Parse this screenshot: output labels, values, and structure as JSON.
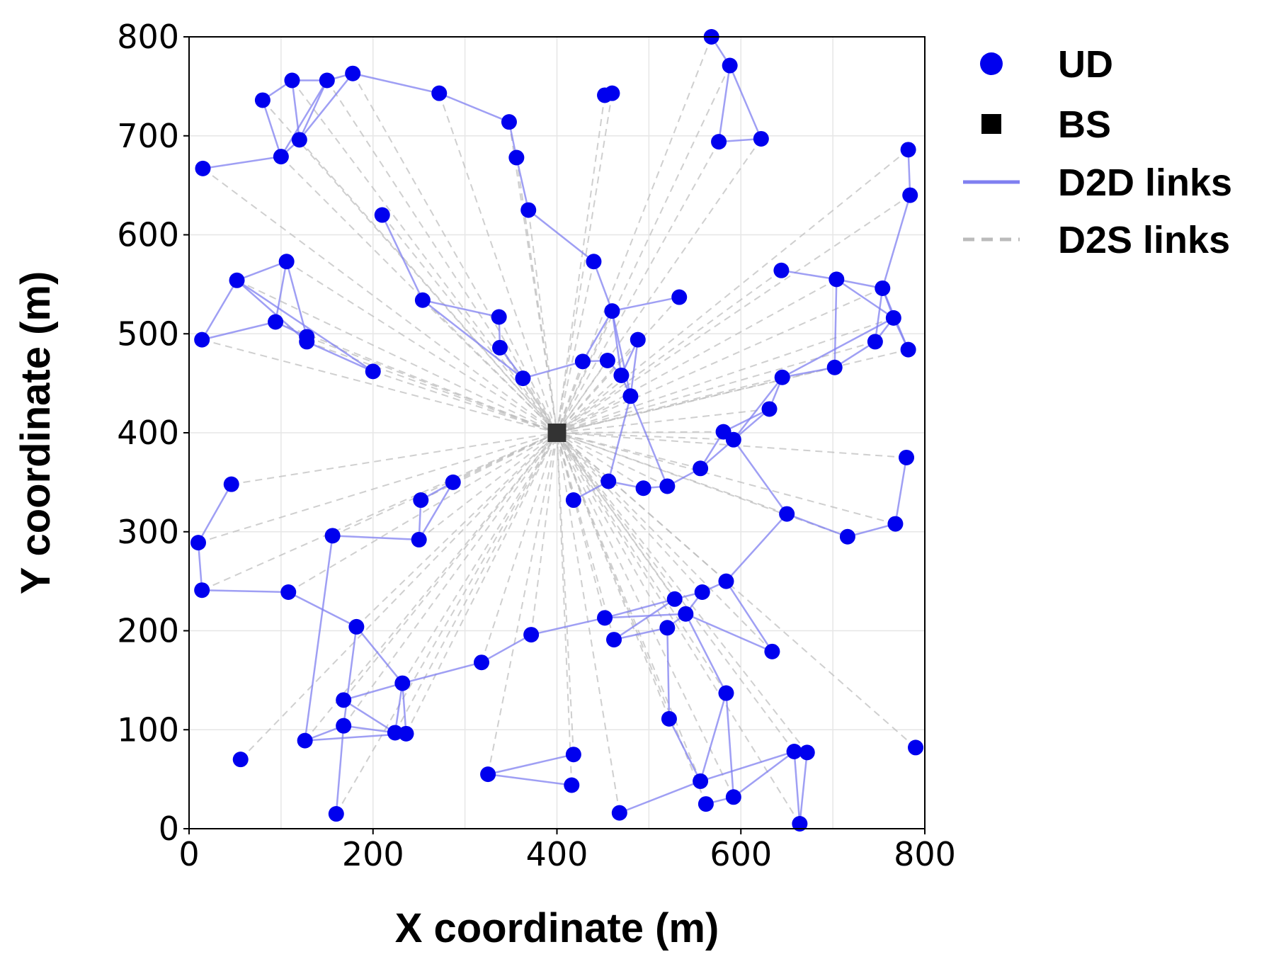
{
  "chart_data": {
    "type": "scatter",
    "title": "",
    "xlabel": "X coordinate (m)",
    "ylabel": "Y coordinate (m)",
    "xlim": [
      0,
      800
    ],
    "ylim": [
      0,
      800
    ],
    "xticks": [
      0,
      200,
      400,
      600,
      800
    ],
    "yticks": [
      0,
      100,
      200,
      300,
      400,
      500,
      600,
      700,
      800
    ],
    "grid": true,
    "legend_position": "outside-right",
    "colors": {
      "ud": "#0000ee",
      "bs": "#000000",
      "d2d": "#7f7ff0",
      "d2s": "#bbbbbb"
    },
    "legend": [
      {
        "key": "ud",
        "label": "UD",
        "marker": "circle"
      },
      {
        "key": "bs",
        "label": "BS",
        "marker": "square"
      },
      {
        "key": "d2d",
        "label": "D2D links",
        "marker": "solid-line"
      },
      {
        "key": "d2s",
        "label": "D2S links",
        "marker": "dashed-line"
      }
    ],
    "bs": {
      "x": 400,
      "y": 400
    },
    "ud_points": [
      [
        15,
        667
      ],
      [
        80,
        736
      ],
      [
        100,
        679
      ],
      [
        112,
        756
      ],
      [
        120,
        696
      ],
      [
        150,
        756
      ],
      [
        178,
        763
      ],
      [
        272,
        743
      ],
      [
        348,
        714
      ],
      [
        356,
        678
      ],
      [
        369,
        625
      ],
      [
        452,
        741
      ],
      [
        460,
        743
      ],
      [
        568,
        800
      ],
      [
        576,
        694
      ],
      [
        588,
        771
      ],
      [
        622,
        697
      ],
      [
        782,
        686
      ],
      [
        784,
        640
      ],
      [
        210,
        620
      ],
      [
        440,
        573
      ],
      [
        52,
        554
      ],
      [
        106,
        573
      ],
      [
        14,
        494
      ],
      [
        94,
        512
      ],
      [
        128,
        497
      ],
      [
        128,
        492
      ],
      [
        200,
        462
      ],
      [
        254,
        534
      ],
      [
        337,
        517
      ],
      [
        338,
        486
      ],
      [
        363,
        455
      ],
      [
        428,
        472
      ],
      [
        455,
        473
      ],
      [
        460,
        523
      ],
      [
        470,
        458
      ],
      [
        480,
        437
      ],
      [
        488,
        494
      ],
      [
        533,
        537
      ],
      [
        644,
        564
      ],
      [
        704,
        555
      ],
      [
        754,
        546
      ],
      [
        766,
        516
      ],
      [
        746,
        492
      ],
      [
        782,
        484
      ],
      [
        702,
        466
      ],
      [
        645,
        456
      ],
      [
        631,
        424
      ],
      [
        581,
        401
      ],
      [
        592,
        393
      ],
      [
        556,
        364
      ],
      [
        520,
        346
      ],
      [
        494,
        344
      ],
      [
        456,
        351
      ],
      [
        418,
        332
      ],
      [
        780,
        375
      ],
      [
        768,
        308
      ],
      [
        650,
        318
      ],
      [
        716,
        295
      ],
      [
        10,
        289
      ],
      [
        46,
        348
      ],
      [
        252,
        332
      ],
      [
        250,
        292
      ],
      [
        287,
        350
      ],
      [
        156,
        296
      ],
      [
        14,
        241
      ],
      [
        108,
        239
      ],
      [
        182,
        204
      ],
      [
        232,
        147
      ],
      [
        168,
        130
      ],
      [
        168,
        104
      ],
      [
        224,
        97
      ],
      [
        236,
        96
      ],
      [
        126,
        89
      ],
      [
        56,
        70
      ],
      [
        160,
        15
      ],
      [
        318,
        168
      ],
      [
        372,
        196
      ],
      [
        452,
        213
      ],
      [
        462,
        191
      ],
      [
        528,
        232
      ],
      [
        540,
        217
      ],
      [
        520,
        203
      ],
      [
        558,
        239
      ],
      [
        584,
        250
      ],
      [
        634,
        179
      ],
      [
        584,
        137
      ],
      [
        522,
        111
      ],
      [
        325,
        55
      ],
      [
        418,
        75
      ],
      [
        416,
        44
      ],
      [
        468,
        16
      ],
      [
        556,
        48
      ],
      [
        562,
        25
      ],
      [
        592,
        32
      ],
      [
        658,
        78
      ],
      [
        672,
        77
      ],
      [
        664,
        5
      ],
      [
        790,
        82
      ]
    ],
    "d2d_links": [
      [
        [
          15,
          667
        ],
        [
          100,
          679
        ]
      ],
      [
        [
          100,
          679
        ],
        [
          120,
          696
        ]
      ],
      [
        [
          120,
          696
        ],
        [
          112,
          756
        ]
      ],
      [
        [
          120,
          696
        ],
        [
          150,
          756
        ]
      ],
      [
        [
          80,
          736
        ],
        [
          112,
          756
        ]
      ],
      [
        [
          80,
          736
        ],
        [
          100,
          679
        ]
      ],
      [
        [
          112,
          756
        ],
        [
          150,
          756
        ]
      ],
      [
        [
          150,
          756
        ],
        [
          178,
          763
        ]
      ],
      [
        [
          120,
          696
        ],
        [
          178,
          763
        ]
      ],
      [
        [
          100,
          679
        ],
        [
          150,
          756
        ]
      ],
      [
        [
          178,
          763
        ],
        [
          272,
          743
        ]
      ],
      [
        [
          272,
          743
        ],
        [
          348,
          714
        ]
      ],
      [
        [
          348,
          714
        ],
        [
          356,
          678
        ]
      ],
      [
        [
          356,
          678
        ],
        [
          369,
          625
        ]
      ],
      [
        [
          369,
          625
        ],
        [
          440,
          573
        ]
      ],
      [
        [
          440,
          573
        ],
        [
          460,
          523
        ]
      ],
      [
        [
          452,
          741
        ],
        [
          460,
          743
        ]
      ],
      [
        [
          568,
          800
        ],
        [
          588,
          771
        ]
      ],
      [
        [
          588,
          771
        ],
        [
          576,
          694
        ]
      ],
      [
        [
          588,
          771
        ],
        [
          622,
          697
        ]
      ],
      [
        [
          576,
          694
        ],
        [
          622,
          697
        ]
      ],
      [
        [
          782,
          686
        ],
        [
          784,
          640
        ]
      ],
      [
        [
          784,
          640
        ],
        [
          754,
          546
        ]
      ],
      [
        [
          210,
          620
        ],
        [
          254,
          534
        ]
      ],
      [
        [
          254,
          534
        ],
        [
          337,
          517
        ]
      ],
      [
        [
          254,
          534
        ],
        [
          363,
          455
        ]
      ],
      [
        [
          337,
          517
        ],
        [
          338,
          486
        ]
      ],
      [
        [
          338,
          486
        ],
        [
          363,
          455
        ]
      ],
      [
        [
          363,
          455
        ],
        [
          428,
          472
        ]
      ],
      [
        [
          428,
          472
        ],
        [
          455,
          473
        ]
      ],
      [
        [
          428,
          472
        ],
        [
          460,
          523
        ]
      ],
      [
        [
          460,
          523
        ],
        [
          533,
          537
        ]
      ],
      [
        [
          460,
          523
        ],
        [
          470,
          458
        ]
      ],
      [
        [
          455,
          473
        ],
        [
          470,
          458
        ]
      ],
      [
        [
          470,
          458
        ],
        [
          488,
          494
        ]
      ],
      [
        [
          488,
          494
        ],
        [
          480,
          437
        ]
      ],
      [
        [
          480,
          437
        ],
        [
          470,
          458
        ]
      ],
      [
        [
          460,
          523
        ],
        [
          480,
          437
        ]
      ],
      [
        [
          52,
          554
        ],
        [
          106,
          573
        ]
      ],
      [
        [
          52,
          554
        ],
        [
          14,
          494
        ]
      ],
      [
        [
          14,
          494
        ],
        [
          94,
          512
        ]
      ],
      [
        [
          52,
          554
        ],
        [
          128,
          492
        ]
      ],
      [
        [
          94,
          512
        ],
        [
          128,
          497
        ]
      ],
      [
        [
          106,
          573
        ],
        [
          94,
          512
        ]
      ],
      [
        [
          106,
          573
        ],
        [
          128,
          497
        ]
      ],
      [
        [
          52,
          554
        ],
        [
          200,
          462
        ]
      ],
      [
        [
          128,
          492
        ],
        [
          200,
          462
        ]
      ],
      [
        [
          644,
          564
        ],
        [
          704,
          555
        ]
      ],
      [
        [
          704,
          555
        ],
        [
          754,
          546
        ]
      ],
      [
        [
          704,
          555
        ],
        [
          702,
          466
        ]
      ],
      [
        [
          754,
          546
        ],
        [
          766,
          516
        ]
      ],
      [
        [
          766,
          516
        ],
        [
          746,
          492
        ]
      ],
      [
        [
          766,
          516
        ],
        [
          782,
          484
        ]
      ],
      [
        [
          754,
          546
        ],
        [
          782,
          484
        ]
      ],
      [
        [
          704,
          555
        ],
        [
          766,
          516
        ]
      ],
      [
        [
          754,
          546
        ],
        [
          746,
          492
        ]
      ],
      [
        [
          746,
          492
        ],
        [
          702,
          466
        ]
      ],
      [
        [
          702,
          466
        ],
        [
          645,
          456
        ]
      ],
      [
        [
          766,
          516
        ],
        [
          645,
          456
        ]
      ],
      [
        [
          645,
          456
        ],
        [
          631,
          424
        ]
      ],
      [
        [
          631,
          424
        ],
        [
          581,
          401
        ]
      ],
      [
        [
          631,
          424
        ],
        [
          592,
          393
        ]
      ],
      [
        [
          645,
          456
        ],
        [
          592,
          393
        ]
      ],
      [
        [
          592,
          393
        ],
        [
          556,
          364
        ]
      ],
      [
        [
          581,
          401
        ],
        [
          556,
          364
        ]
      ],
      [
        [
          556,
          364
        ],
        [
          520,
          346
        ]
      ],
      [
        [
          520,
          346
        ],
        [
          494,
          344
        ]
      ],
      [
        [
          494,
          344
        ],
        [
          456,
          351
        ]
      ],
      [
        [
          456,
          351
        ],
        [
          418,
          332
        ]
      ],
      [
        [
          520,
          346
        ],
        [
          480,
          437
        ]
      ],
      [
        [
          480,
          437
        ],
        [
          456,
          351
        ]
      ],
      [
        [
          780,
          375
        ],
        [
          768,
          308
        ]
      ],
      [
        [
          768,
          308
        ],
        [
          716,
          295
        ]
      ],
      [
        [
          716,
          295
        ],
        [
          650,
          318
        ]
      ],
      [
        [
          650,
          318
        ],
        [
          592,
          393
        ]
      ],
      [
        [
          650,
          318
        ],
        [
          584,
          250
        ]
      ],
      [
        [
          10,
          289
        ],
        [
          46,
          348
        ]
      ],
      [
        [
          10,
          289
        ],
        [
          14,
          241
        ]
      ],
      [
        [
          14,
          241
        ],
        [
          108,
          239
        ]
      ],
      [
        [
          108,
          239
        ],
        [
          182,
          204
        ]
      ],
      [
        [
          252,
          332
        ],
        [
          250,
          292
        ]
      ],
      [
        [
          252,
          332
        ],
        [
          287,
          350
        ]
      ],
      [
        [
          250,
          292
        ],
        [
          287,
          350
        ]
      ],
      [
        [
          250,
          292
        ],
        [
          156,
          296
        ]
      ],
      [
        [
          156,
          296
        ],
        [
          126,
          89
        ]
      ],
      [
        [
          182,
          204
        ],
        [
          232,
          147
        ]
      ],
      [
        [
          182,
          204
        ],
        [
          168,
          104
        ]
      ],
      [
        [
          232,
          147
        ],
        [
          168,
          130
        ]
      ],
      [
        [
          232,
          147
        ],
        [
          224,
          97
        ]
      ],
      [
        [
          232,
          147
        ],
        [
          236,
          96
        ]
      ],
      [
        [
          168,
          130
        ],
        [
          224,
          97
        ]
      ],
      [
        [
          168,
          104
        ],
        [
          224,
          97
        ]
      ],
      [
        [
          168,
          104
        ],
        [
          126,
          89
        ]
      ],
      [
        [
          168,
          104
        ],
        [
          160,
          15
        ]
      ],
      [
        [
          126,
          89
        ],
        [
          236,
          96
        ]
      ],
      [
        [
          232,
          147
        ],
        [
          318,
          168
        ]
      ],
      [
        [
          318,
          168
        ],
        [
          372,
          196
        ]
      ],
      [
        [
          372,
          196
        ],
        [
          452,
          213
        ]
      ],
      [
        [
          452,
          213
        ],
        [
          528,
          232
        ]
      ],
      [
        [
          452,
          213
        ],
        [
          540,
          217
        ]
      ],
      [
        [
          462,
          191
        ],
        [
          528,
          232
        ]
      ],
      [
        [
          462,
          191
        ],
        [
          520,
          203
        ]
      ],
      [
        [
          520,
          203
        ],
        [
          540,
          217
        ]
      ],
      [
        [
          528,
          232
        ],
        [
          558,
          239
        ]
      ],
      [
        [
          540,
          217
        ],
        [
          558,
          239
        ]
      ],
      [
        [
          558,
          239
        ],
        [
          584,
          250
        ]
      ],
      [
        [
          540,
          217
        ],
        [
          634,
          179
        ]
      ],
      [
        [
          584,
          250
        ],
        [
          634,
          179
        ]
      ],
      [
        [
          520,
          203
        ],
        [
          522,
          111
        ]
      ],
      [
        [
          540,
          217
        ],
        [
          584,
          137
        ]
      ],
      [
        [
          584,
          137
        ],
        [
          556,
          48
        ]
      ],
      [
        [
          584,
          137
        ],
        [
          592,
          32
        ]
      ],
      [
        [
          522,
          111
        ],
        [
          556,
          48
        ]
      ],
      [
        [
          325,
          55
        ],
        [
          418,
          75
        ]
      ],
      [
        [
          325,
          55
        ],
        [
          416,
          44
        ]
      ],
      [
        [
          468,
          16
        ],
        [
          556,
          48
        ]
      ],
      [
        [
          556,
          48
        ],
        [
          658,
          78
        ]
      ],
      [
        [
          592,
          32
        ],
        [
          658,
          78
        ]
      ],
      [
        [
          658,
          78
        ],
        [
          664,
          5
        ]
      ],
      [
        [
          672,
          77
        ],
        [
          664,
          5
        ]
      ],
      [
        [
          562,
          25
        ],
        [
          592,
          32
        ]
      ]
    ]
  }
}
